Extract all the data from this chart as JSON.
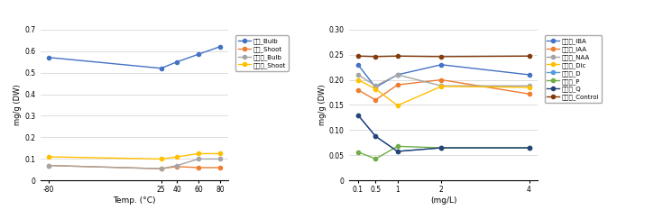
{
  "left": {
    "x": [
      -80,
      25,
      40,
      60,
      80
    ],
    "xlabel": "Temp. (°C)",
    "ylabel": "mg/g (DW)",
    "ylim": [
      0,
      0.7
    ],
    "yticks": [
      0,
      0.1,
      0.2,
      0.3,
      0.4,
      0.5,
      0.6,
      0.7
    ],
    "series": [
      {
        "label": "십신_Bulb",
        "color": "#4472C4",
        "values": [
          0.57,
          0.52,
          0.55,
          0.585,
          0.62
        ]
      },
      {
        "label": "십신_Shoot",
        "color": "#ED7D31",
        "values": [
          0.07,
          0.055,
          0.065,
          0.06,
          0.06
        ]
      },
      {
        "label": "수선화_Bulb",
        "color": "#A5A5A5",
        "values": [
          0.07,
          0.055,
          0.07,
          0.1,
          0.1
        ]
      },
      {
        "label": "수선화_Shoot",
        "color": "#FFC000",
        "values": [
          0.11,
          0.1,
          0.11,
          0.125,
          0.125
        ]
      }
    ]
  },
  "right": {
    "x": [
      0.1,
      0.5,
      1,
      2,
      4
    ],
    "xlabel": "(mg/L)",
    "ylabel": "mg/g (DW)",
    "ylim": [
      0,
      0.3
    ],
    "yticks": [
      0,
      0.05,
      0.1,
      0.15,
      0.2,
      0.25,
      0.3
    ],
    "series": [
      {
        "label": "수선화_IBA",
        "color": "#4472C4",
        "values": [
          0.23,
          0.185,
          0.21,
          0.23,
          0.21
        ]
      },
      {
        "label": "수선화_IAA",
        "color": "#ED7D31",
        "values": [
          0.18,
          0.16,
          0.19,
          0.2,
          0.172
        ]
      },
      {
        "label": "수선화_NAA",
        "color": "#A5A5A5",
        "values": [
          0.21,
          0.188,
          0.21,
          0.188,
          0.188
        ]
      },
      {
        "label": "수선화_Dic",
        "color": "#FFC000",
        "values": [
          0.2,
          0.182,
          0.149,
          0.187,
          0.185
        ]
      },
      {
        "label": "수선화_D",
        "color": "#5B9BD5",
        "values": [
          0.13,
          0.088,
          0.058,
          0.065,
          0.065
        ]
      },
      {
        "label": "수선화_P",
        "color": "#70AD47",
        "values": [
          0.057,
          0.043,
          0.068,
          0.065,
          0.065
        ]
      },
      {
        "label": "수선화_Q",
        "color": "#264478",
        "values": [
          0.13,
          0.088,
          0.058,
          0.065,
          0.065
        ]
      },
      {
        "label": "수선화_Control",
        "color": "#843C0C",
        "values": [
          0.247,
          0.246,
          0.247,
          0.246,
          0.247
        ]
      }
    ]
  }
}
